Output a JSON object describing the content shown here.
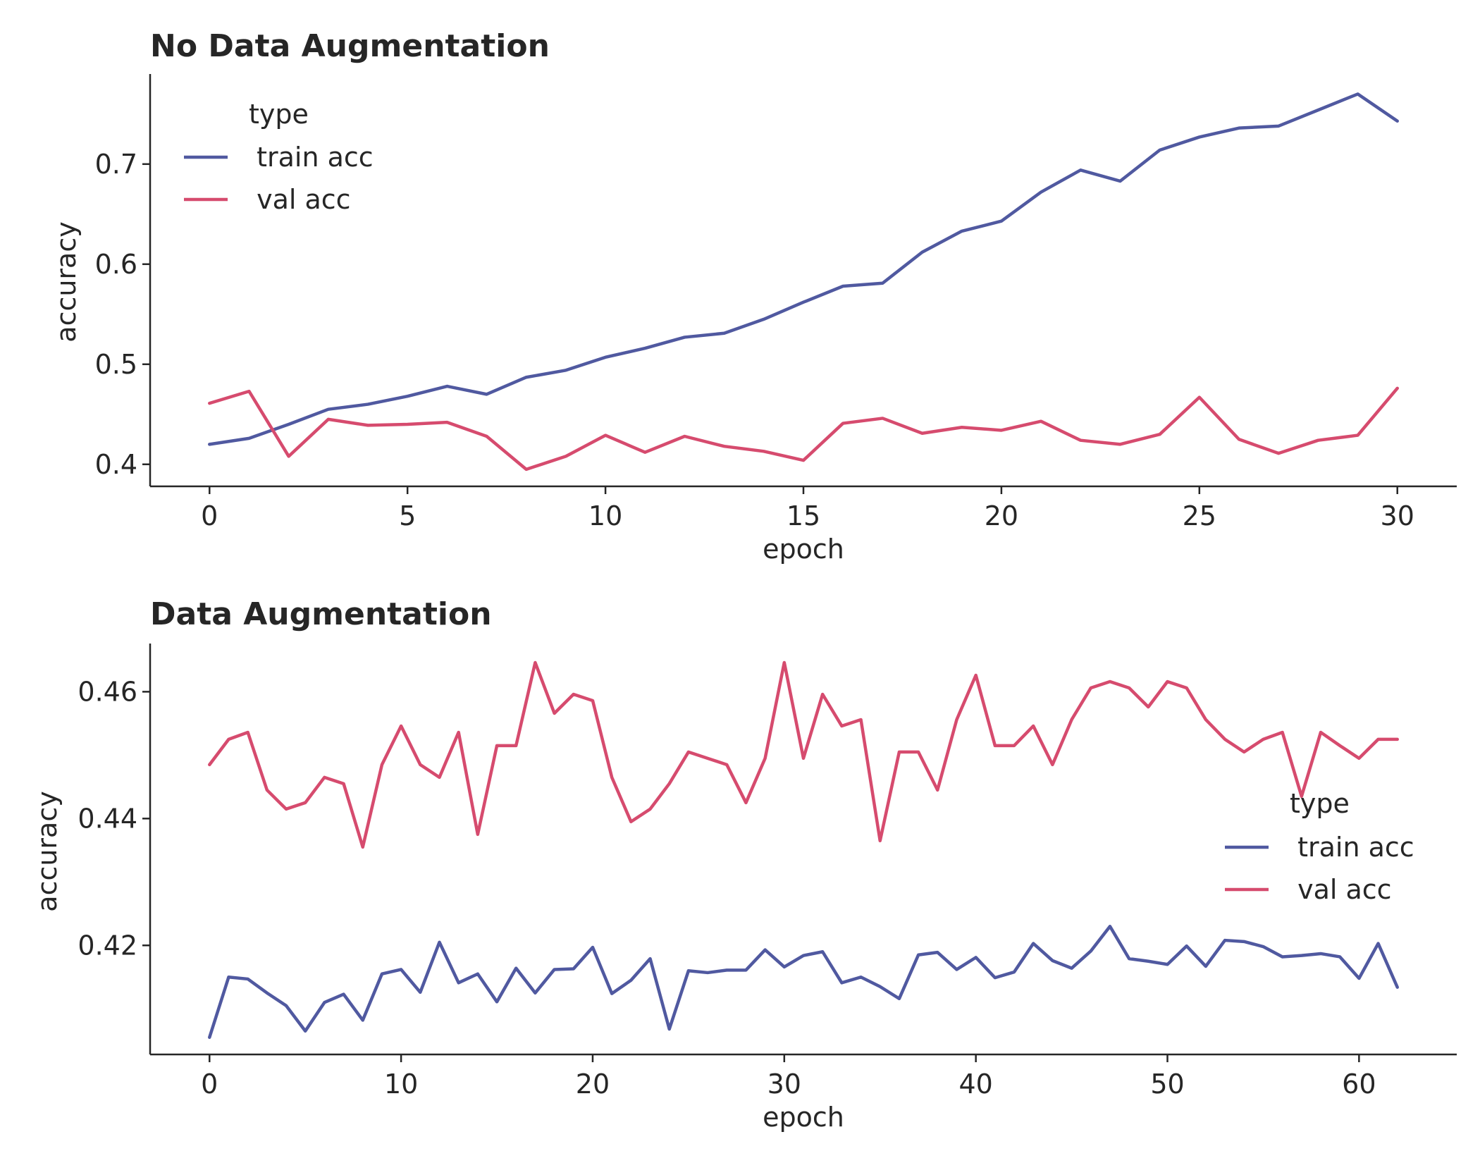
{
  "chart_data": [
    {
      "type": "line",
      "title": "No Data Augmentation",
      "xlabel": "epoch",
      "ylabel": "accuracy",
      "xlim": [
        -1.5,
        31.5
      ],
      "ylim": [
        0.378,
        0.79
      ],
      "xticks": [
        0,
        5,
        10,
        15,
        20,
        25,
        30
      ],
      "xtick_labels": [
        "0",
        "5",
        "10",
        "15",
        "20",
        "25",
        "30"
      ],
      "yticks": [
        0.4,
        0.5,
        0.6,
        0.7
      ],
      "ytick_labels": [
        "0.4",
        "0.5",
        "0.6",
        "0.7"
      ],
      "legend": {
        "title": "type",
        "placement": "upper-left"
      },
      "x": [
        0,
        1,
        2,
        3,
        4,
        5,
        6,
        7,
        8,
        9,
        10,
        11,
        12,
        13,
        14,
        15,
        16,
        17,
        18,
        19,
        20,
        21,
        22,
        23,
        24,
        25,
        26,
        27,
        28,
        29,
        30
      ],
      "series": [
        {
          "name": " train acc",
          "color": "#5059a0",
          "values": [
            0.42,
            0.426,
            0.44,
            0.455,
            0.46,
            0.468,
            0.478,
            0.47,
            0.487,
            0.494,
            0.507,
            0.516,
            0.527,
            0.531,
            0.545,
            0.562,
            0.578,
            0.581,
            0.612,
            0.633,
            0.643,
            0.672,
            0.694,
            0.683,
            0.714,
            0.727,
            0.736,
            0.738,
            0.754,
            0.77,
            0.743
          ]
        },
        {
          "name": " val acc",
          "color": "#d64b6e",
          "values": [
            0.461,
            0.473,
            0.408,
            0.445,
            0.439,
            0.44,
            0.442,
            0.428,
            0.395,
            0.408,
            0.429,
            0.412,
            0.428,
            0.418,
            0.413,
            0.404,
            0.441,
            0.446,
            0.431,
            0.437,
            0.434,
            0.443,
            0.424,
            0.42,
            0.43,
            0.467,
            0.425,
            0.411,
            0.424,
            0.429,
            0.476
          ]
        }
      ]
    },
    {
      "type": "line",
      "title": "Data Augmentation",
      "xlabel": "epoch",
      "ylabel": "accuracy",
      "xlim": [
        -3.1,
        65.1
      ],
      "ylim": [
        0.4028,
        0.4676
      ],
      "xticks": [
        0,
        10,
        20,
        30,
        40,
        50,
        60
      ],
      "xtick_labels": [
        "0",
        "10",
        "20",
        "30",
        "40",
        "50",
        "60"
      ],
      "yticks": [
        0.42,
        0.44,
        0.46
      ],
      "ytick_labels": [
        "0.42",
        "0.44",
        "0.46"
      ],
      "legend": {
        "title": "type",
        "placement": "center-right"
      },
      "x": [
        0,
        1,
        2,
        3,
        4,
        5,
        6,
        7,
        8,
        9,
        10,
        11,
        12,
        13,
        14,
        15,
        16,
        17,
        18,
        19,
        20,
        21,
        22,
        23,
        24,
        25,
        26,
        27,
        28,
        29,
        30,
        31,
        32,
        33,
        34,
        35,
        36,
        37,
        38,
        39,
        40,
        41,
        42,
        43,
        44,
        45,
        46,
        47,
        48,
        49,
        50,
        51,
        52,
        53,
        54,
        55,
        56,
        57,
        58,
        59,
        60,
        61,
        62
      ],
      "series": [
        {
          "name": " train acc",
          "color": "#5059a0",
          "values": [
            0.4055,
            0.415,
            0.4147,
            0.4125,
            0.4105,
            0.4065,
            0.411,
            0.4123,
            0.4082,
            0.4155,
            0.4162,
            0.4126,
            0.4205,
            0.4141,
            0.4155,
            0.4111,
            0.4164,
            0.4125,
            0.4162,
            0.4163,
            0.4197,
            0.4124,
            0.4145,
            0.4179,
            0.4068,
            0.416,
            0.4157,
            0.4161,
            0.4161,
            0.4193,
            0.4166,
            0.4184,
            0.419,
            0.4141,
            0.415,
            0.4135,
            0.4116,
            0.4185,
            0.4189,
            0.4162,
            0.4181,
            0.4149,
            0.4158,
            0.4203,
            0.4176,
            0.4164,
            0.4191,
            0.423,
            0.4179,
            0.4175,
            0.417,
            0.4199,
            0.4167,
            0.4208,
            0.4206,
            0.4198,
            0.4182,
            0.4184,
            0.4187,
            0.4182,
            0.4148,
            0.4203,
            0.4134
          ]
        },
        {
          "name": " val acc",
          "color": "#d64b6e",
          "values": [
            0.4485,
            0.4525,
            0.4536,
            0.4445,
            0.4415,
            0.4425,
            0.4465,
            0.4455,
            0.4355,
            0.4485,
            0.4546,
            0.4485,
            0.4465,
            0.4536,
            0.4375,
            0.4515,
            0.4515,
            0.4646,
            0.4566,
            0.4596,
            0.4586,
            0.4465,
            0.4395,
            0.4415,
            0.4455,
            0.4505,
            0.4495,
            0.4485,
            0.4425,
            0.4495,
            0.4646,
            0.4495,
            0.4596,
            0.4546,
            0.4556,
            0.4365,
            0.4505,
            0.4505,
            0.4445,
            0.4556,
            0.4626,
            0.4515,
            0.4515,
            0.4546,
            0.4485,
            0.4556,
            0.4606,
            0.4616,
            0.4606,
            0.4576,
            0.4616,
            0.4606,
            0.4556,
            0.4525,
            0.4505,
            0.4525,
            0.4536,
            0.4435,
            0.4536,
            0.4515,
            0.4495,
            0.4525,
            0.4525
          ]
        }
      ]
    }
  ]
}
